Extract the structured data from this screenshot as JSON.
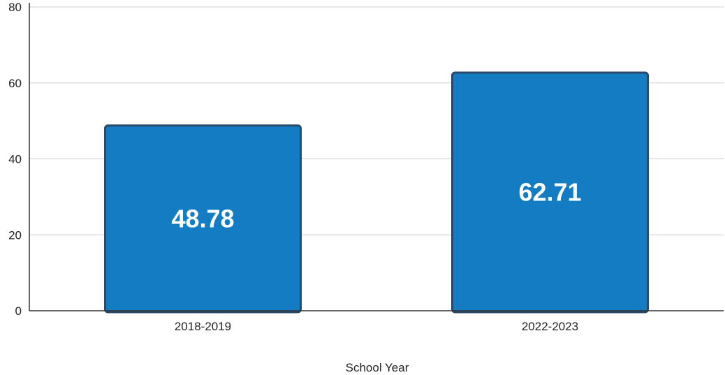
{
  "chart_data": {
    "type": "bar",
    "categories": [
      "2018-2019",
      "2022-2023"
    ],
    "values": [
      48.78,
      62.71
    ],
    "data_labels": [
      "48.78",
      "62.71"
    ],
    "title": "",
    "xlabel": "School Year",
    "ylabel": "",
    "ylim": [
      0,
      80
    ],
    "yticks": [
      0,
      20,
      40,
      60,
      80
    ],
    "ytick_labels": [
      "0",
      "20",
      "40",
      "60",
      "80"
    ],
    "grid": true,
    "legend": "none",
    "colors": {
      "bar_fill": "#137cc2",
      "bar_border": "#2b4a6b",
      "grid": "#cccccc",
      "axis": "#333333",
      "data_label": "#ffffff"
    }
  }
}
